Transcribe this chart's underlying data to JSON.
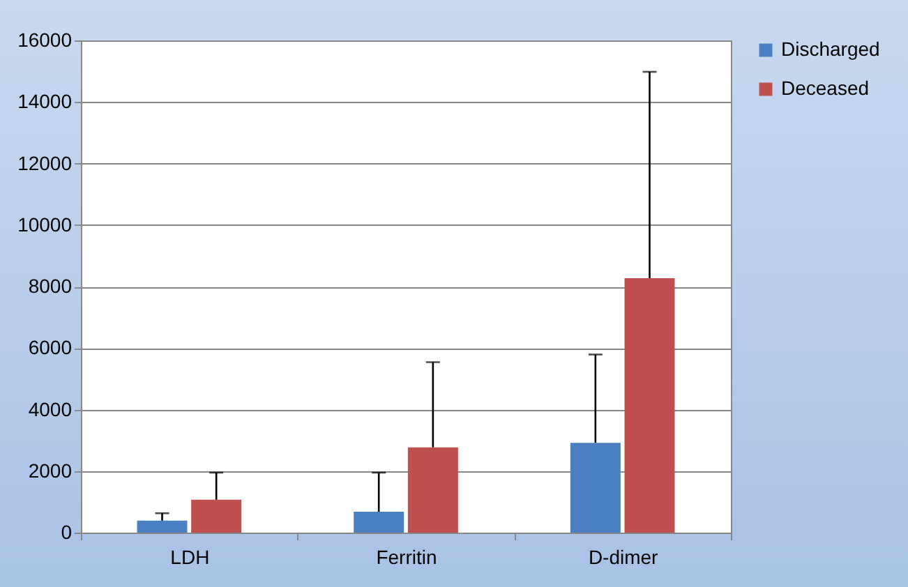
{
  "chart_data": {
    "type": "bar",
    "categories": [
      "LDH",
      "Ferritin",
      "D-dimer"
    ],
    "series": [
      {
        "name": "Discharged",
        "color": "#4a7fc1",
        "values": [
          390,
          680,
          2920
        ],
        "errors": [
          [
            390,
            630
          ],
          [
            680,
            1950
          ],
          [
            2920,
            5790
          ]
        ]
      },
      {
        "name": "Deceased",
        "color": "#c0504d",
        "values": [
          1070,
          2770,
          8270
        ],
        "errors": [
          [
            1070,
            1950
          ],
          [
            2770,
            5540
          ],
          [
            8270,
            14980
          ]
        ]
      }
    ],
    "ylim": [
      0,
      16000
    ],
    "yticks": [
      0,
      2000,
      4000,
      6000,
      8000,
      10000,
      12000,
      14000,
      16000
    ],
    "grid": "y",
    "legend": "right"
  }
}
